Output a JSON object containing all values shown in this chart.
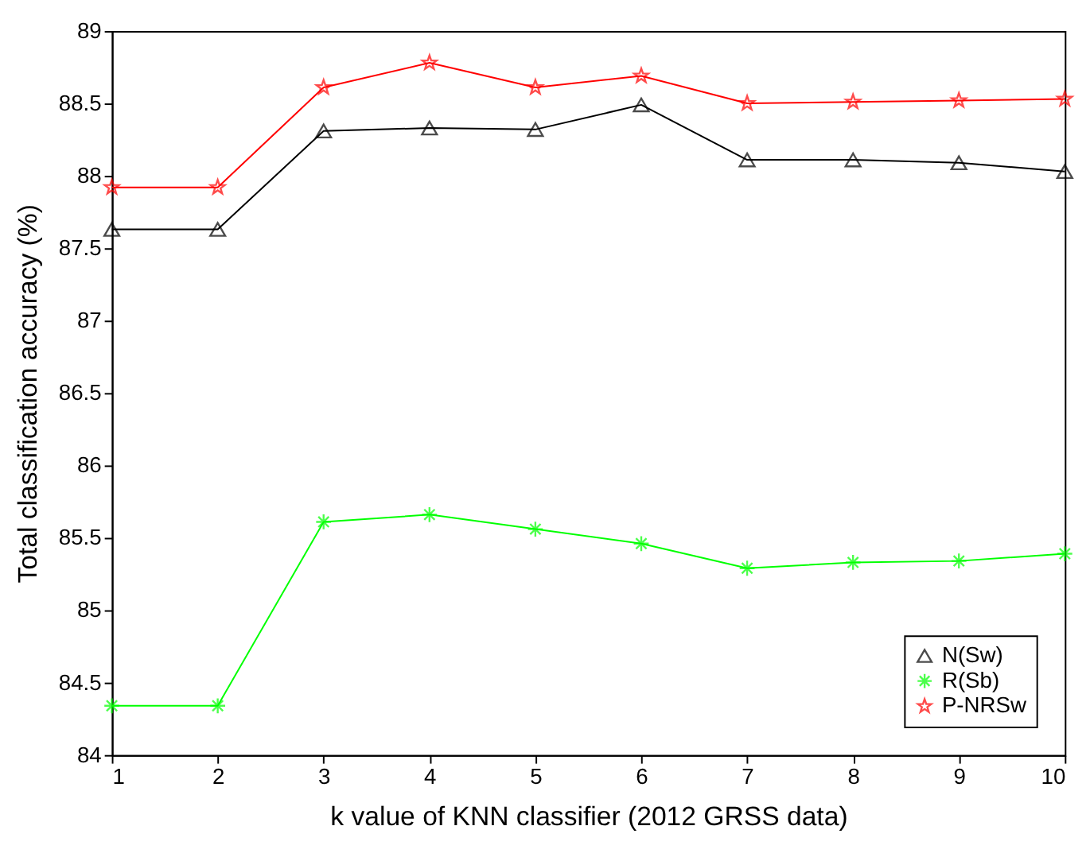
{
  "chart_data": {
    "type": "line",
    "xlabel": "k value of KNN classifier (2012 GRSS data)",
    "ylabel": "Total classification accuracy (%)",
    "x": [
      1,
      2,
      3,
      4,
      5,
      6,
      7,
      8,
      9,
      10
    ],
    "xlim": [
      1,
      10
    ],
    "xticks": [
      1,
      2,
      3,
      4,
      5,
      6,
      7,
      8,
      9,
      10
    ],
    "ylim": [
      84,
      89
    ],
    "yticks": [
      84,
      84.5,
      85,
      85.5,
      86,
      86.5,
      87,
      87.5,
      88,
      88.5,
      89
    ],
    "grid": false,
    "legend": "bottom right",
    "line_style": "solid",
    "series": [
      {
        "name": "N(Sw)",
        "color": "#000000",
        "marker": "triangle",
        "values": [
          87.63,
          87.63,
          88.31,
          88.33,
          88.32,
          88.49,
          88.11,
          88.11,
          88.09,
          88.03
        ]
      },
      {
        "name": "R(Sb)",
        "color": "#00ff00",
        "marker": "cross",
        "values": [
          84.34,
          84.34,
          85.61,
          85.66,
          85.56,
          85.46,
          85.29,
          85.33,
          85.34,
          85.39
        ]
      },
      {
        "name": "P-NRSw",
        "color": "#ff0000",
        "marker": "star",
        "values": [
          87.92,
          87.92,
          88.61,
          88.78,
          88.61,
          88.69,
          88.5,
          88.51,
          88.52,
          88.53
        ]
      }
    ]
  }
}
